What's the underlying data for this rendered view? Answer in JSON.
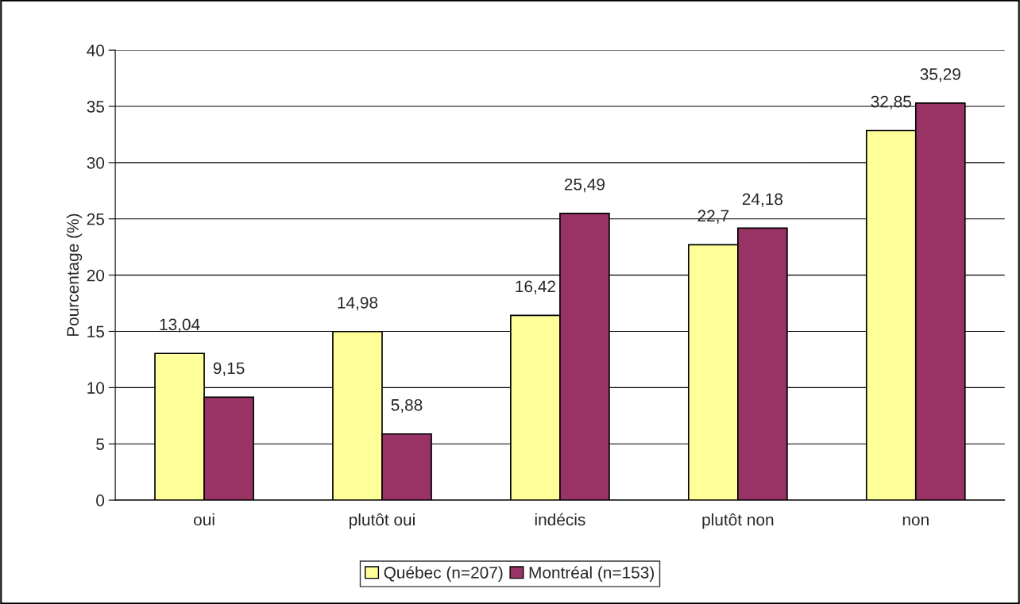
{
  "chart_data": {
    "type": "bar",
    "ylabel": "Pourcentage (%)",
    "categories": [
      "oui",
      "plutôt oui",
      "indécis",
      "plutôt non",
      "non"
    ],
    "series": [
      {
        "name": "Québec (n=207)",
        "color": "#ffff99",
        "values": [
          13.04,
          14.98,
          16.42,
          22.7,
          32.85
        ],
        "value_labels": [
          "13,04",
          "14,98",
          "16,42",
          "22,7",
          "32,85"
        ]
      },
      {
        "name": "Montréal (n=153)",
        "color": "#993366",
        "values": [
          9.15,
          5.88,
          25.49,
          24.18,
          35.29
        ],
        "value_labels": [
          "9,15",
          "5,88",
          "25,49",
          "24,18",
          "35,29"
        ]
      }
    ],
    "ylim": [
      0,
      40
    ],
    "yticks": [
      0,
      5,
      10,
      15,
      20,
      25,
      30,
      35,
      40
    ],
    "grid": "y",
    "legend": "bottom"
  }
}
